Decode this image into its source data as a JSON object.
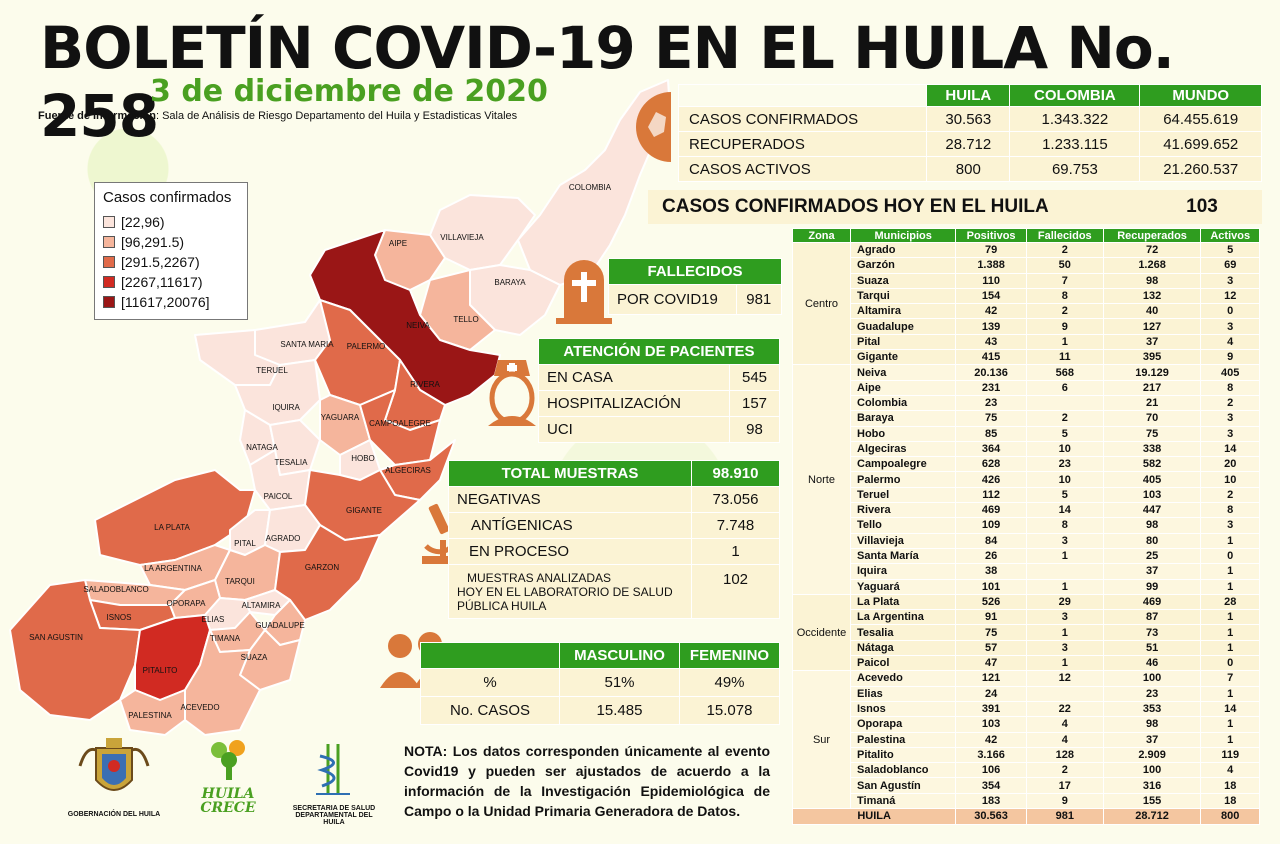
{
  "header": {
    "title": "BOLETÍN COVID-19 EN EL HUILA No. 258",
    "date": "3 de diciembre de 2020",
    "source_label": "Fuente de Información",
    "source_text": ": Sala de Análisis de Riesgo Departamento del Huila y Estadisticas Vitales"
  },
  "legend": {
    "title": "Casos confirmados",
    "items": [
      {
        "label": "[22,96)",
        "color": "#fbe4dc"
      },
      {
        "label": "[96,291.5)",
        "color": "#f5b59c"
      },
      {
        "label": "[291.5,2267)",
        "color": "#e06a4a"
      },
      {
        "label": "[2267,11617)",
        "color": "#d12a22"
      },
      {
        "label": "[11617,20076]",
        "color": "#9a1616"
      }
    ]
  },
  "map_labels": [
    "COLOMBIA",
    "VILLAVIEJA",
    "BARAYA",
    "AIPE",
    "TELLO",
    "NEIVA",
    "SANTA MARIA",
    "PALERMO",
    "TERUEL",
    "RIVERA",
    "IQUIRA",
    "YAGUARA",
    "CAMPOALEGRE",
    "NATAGA",
    "TESALIA",
    "HOBO",
    "ALGECIRAS",
    "PAICOL",
    "GIGANTE",
    "LA PLATA",
    "PITAL",
    "AGRADO",
    "LA ARGENTINA",
    "TARQUI",
    "GARZON",
    "SALADOBLANCO",
    "OPORAPA",
    "ALTAMIRA",
    "ISNOS",
    "ELIAS",
    "GUADALUPE",
    "SAN AGUSTIN",
    "TIMANA",
    "SUAZA",
    "PITALITO",
    "ACEVEDO",
    "PALESTINA"
  ],
  "summary": {
    "cols": [
      "HUILA",
      "COLOMBIA",
      "MUNDO"
    ],
    "rows": [
      {
        "label": "CASOS CONFIRMADOS",
        "values": [
          "30.563",
          "1.343.322",
          "64.455.619"
        ]
      },
      {
        "label": "RECUPERADOS",
        "values": [
          "28.712",
          "1.233.115",
          "41.699.652"
        ]
      },
      {
        "label": "CASOS ACTIVOS",
        "values": [
          "800",
          "69.753",
          "21.260.537"
        ]
      }
    ],
    "hoy_label": "CASOS CONFIRMADOS HOY EN EL HUILA",
    "hoy_value": "103"
  },
  "fallecidos": {
    "title": "FALLECIDOS",
    "label": "POR COVID19",
    "value": "981"
  },
  "atencion": {
    "title": "ATENCIÓN DE PACIENTES",
    "rows": [
      {
        "label": "EN CASA",
        "value": "545"
      },
      {
        "label": "HOSPITALIZACIÓN",
        "value": "157"
      },
      {
        "label": "UCI",
        "value": "98"
      }
    ]
  },
  "muestras": {
    "title": "TOTAL MUESTRAS",
    "total": "98.910",
    "rows": [
      {
        "label": "NEGATIVAS",
        "value": "73.056"
      },
      {
        "label": "ANTÍGENICAS",
        "value": "7.748"
      },
      {
        "label": "EN PROCESO",
        "value": "1"
      }
    ],
    "lab_label_1": "MUESTRAS ANALIZADAS",
    "lab_label_2": "HOY EN EL LABORATORIO DE SALUD PÚBLICA HUILA",
    "lab_value": "102"
  },
  "sexo": {
    "cols": [
      "MASCULINO",
      "FEMENINO"
    ],
    "rows": [
      {
        "label": "%",
        "values": [
          "51%",
          "49%"
        ]
      },
      {
        "label": "No. CASOS",
        "values": [
          "15.485",
          "15.078"
        ]
      }
    ]
  },
  "municipios": {
    "headers": [
      "Zona",
      "Municipios",
      "Positivos",
      "Fallecidos",
      "Recuperados",
      "Activos"
    ],
    "zones": [
      {
        "zona": "Centro",
        "rows": [
          [
            "Agrado",
            "79",
            "2",
            "72",
            "5"
          ],
          [
            "Garzón",
            "1.388",
            "50",
            "1.268",
            "69"
          ],
          [
            "Suaza",
            "110",
            "7",
            "98",
            "3"
          ],
          [
            "Tarqui",
            "154",
            "8",
            "132",
            "12"
          ],
          [
            "Altamira",
            "42",
            "2",
            "40",
            "0"
          ],
          [
            "Guadalupe",
            "139",
            "9",
            "127",
            "3"
          ],
          [
            "Pital",
            "43",
            "1",
            "37",
            "4"
          ],
          [
            "Gigante",
            "415",
            "11",
            "395",
            "9"
          ]
        ]
      },
      {
        "zona": "Norte",
        "rows": [
          [
            "Neiva",
            "20.136",
            "568",
            "19.129",
            "405"
          ],
          [
            "Aipe",
            "231",
            "6",
            "217",
            "8"
          ],
          [
            "Colombia",
            "23",
            "",
            "21",
            "2"
          ],
          [
            "Baraya",
            "75",
            "2",
            "70",
            "3"
          ],
          [
            "Hobo",
            "85",
            "5",
            "75",
            "3"
          ],
          [
            "Algeciras",
            "364",
            "10",
            "338",
            "14"
          ],
          [
            "Campoalegre",
            "628",
            "23",
            "582",
            "20"
          ],
          [
            "Palermo",
            "426",
            "10",
            "405",
            "10"
          ],
          [
            "Teruel",
            "112",
            "5",
            "103",
            "2"
          ],
          [
            "Rivera",
            "469",
            "14",
            "447",
            "8"
          ],
          [
            "Tello",
            "109",
            "8",
            "98",
            "3"
          ],
          [
            "Villavieja",
            "84",
            "3",
            "80",
            "1"
          ],
          [
            "Santa María",
            "26",
            "1",
            "25",
            "0"
          ],
          [
            "Iquira",
            "38",
            "",
            "37",
            "1"
          ],
          [
            "Yaguará",
            "101",
            "1",
            "99",
            "1"
          ]
        ]
      },
      {
        "zona": "Occidente",
        "rows": [
          [
            "La Plata",
            "526",
            "29",
            "469",
            "28"
          ],
          [
            "La Argentina",
            "91",
            "3",
            "87",
            "1"
          ],
          [
            "Tesalia",
            "75",
            "1",
            "73",
            "1"
          ],
          [
            "Nátaga",
            "57",
            "3",
            "51",
            "1"
          ],
          [
            "Paicol",
            "47",
            "1",
            "46",
            "0"
          ]
        ]
      },
      {
        "zona": "Sur",
        "rows": [
          [
            "Acevedo",
            "121",
            "12",
            "100",
            "7"
          ],
          [
            "Elias",
            "24",
            "",
            "23",
            "1"
          ],
          [
            "Isnos",
            "391",
            "22",
            "353",
            "14"
          ],
          [
            "Oporapa",
            "103",
            "4",
            "98",
            "1"
          ],
          [
            "Palestina",
            "42",
            "4",
            "37",
            "1"
          ],
          [
            "Pitalito",
            "3.166",
            "128",
            "2.909",
            "119"
          ],
          [
            "Saladoblanco",
            "106",
            "2",
            "100",
            "4"
          ],
          [
            "San Agustín",
            "354",
            "17",
            "316",
            "18"
          ],
          [
            "Timaná",
            "183",
            "9",
            "155",
            "18"
          ]
        ]
      }
    ],
    "total": [
      "HUILA",
      "30.563",
      "981",
      "28.712",
      "800"
    ]
  },
  "nota": "NOTA: Los datos corresponden únicamente al evento Covid19 y pueden ser ajustados de acuerdo a la información de la Investigación Epidemiológica de Campo o la Unidad Primaria Generadora de Datos.",
  "logos": {
    "gobernacion": "GOBERNACIÓN DEL HUILA",
    "huila_crece_1": "HUILA",
    "huila_crece_2": "CRECE",
    "secretaria_1": "SECRETARIA DE SALUD",
    "secretaria_2": "DEPARTAMENTAL DEL HUILA"
  }
}
